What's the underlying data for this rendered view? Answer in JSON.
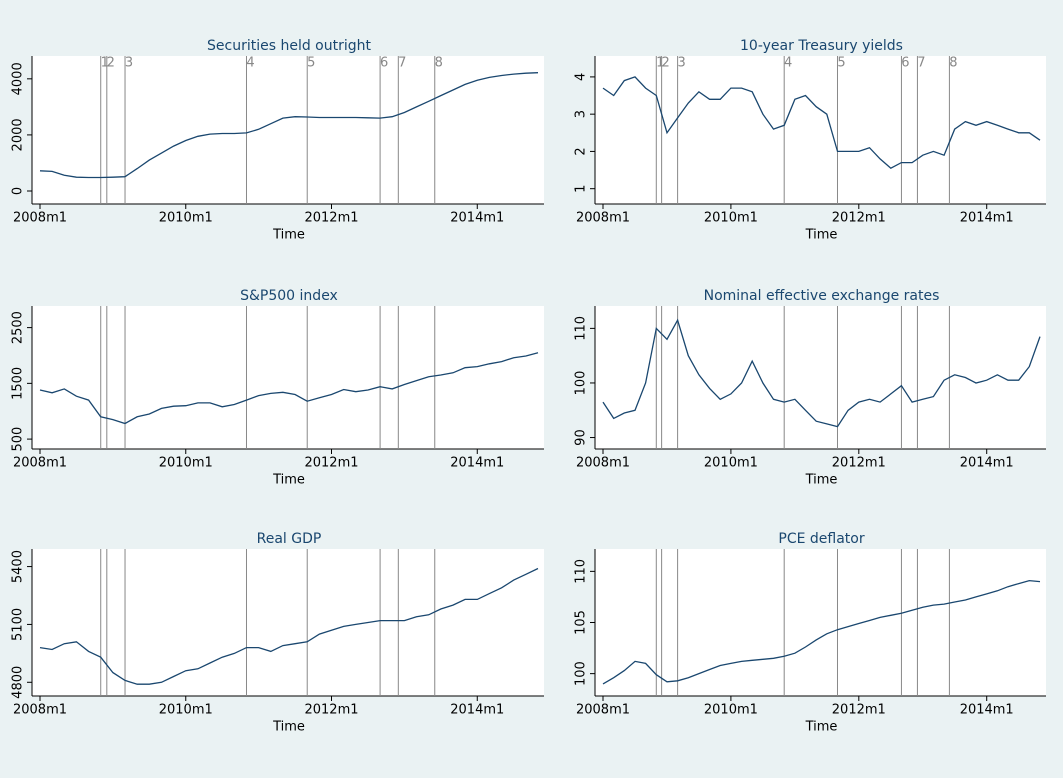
{
  "chart_data": [
    {
      "type": "line",
      "title": "Securities held outright",
      "xlabel": "Time",
      "color": "#1a476f",
      "x": [
        "2008m1",
        "2008m3",
        "2008m5",
        "2008m7",
        "2008m9",
        "2008m11",
        "2009m1",
        "2009m3",
        "2009m5",
        "2009m7",
        "2009m9",
        "2009m11",
        "2010m1",
        "2010m3",
        "2010m5",
        "2010m7",
        "2010m9",
        "2010m11",
        "2011m1",
        "2011m3",
        "2011m5",
        "2011m7",
        "2011m9",
        "2011m11",
        "2012m1",
        "2012m3",
        "2012m5",
        "2012m7",
        "2012m9",
        "2012m11",
        "2013m1",
        "2013m3",
        "2013m5",
        "2013m7",
        "2013m9",
        "2013m11",
        "2014m1",
        "2014m3",
        "2014m5",
        "2014m7",
        "2014m9",
        "2014m11"
      ],
      "values": [
        720,
        700,
        560,
        490,
        480,
        480,
        490,
        510,
        800,
        1100,
        1350,
        1600,
        1800,
        1950,
        2030,
        2050,
        2050,
        2070,
        2200,
        2400,
        2600,
        2650,
        2640,
        2620,
        2620,
        2620,
        2620,
        2610,
        2600,
        2650,
        2800,
        3000,
        3200,
        3400,
        3600,
        3800,
        3950,
        4050,
        4120,
        4170,
        4200,
        4220
      ],
      "ylim": [
        -250,
        4600
      ],
      "yticks": [
        0,
        2000,
        4000
      ],
      "xticks": [
        "2008m1",
        "2010m1",
        "2012m1",
        "2014m1"
      ],
      "events": [
        "2008m11",
        "2008m12",
        "2009m3",
        "2010m11",
        "2011m9",
        "2012m9",
        "2012m12",
        "2013m6"
      ],
      "event_labels": [
        "1",
        "2",
        "3",
        "4",
        "5",
        "6",
        "7",
        "8"
      ]
    },
    {
      "type": "line",
      "title": "10-year Treasury yields",
      "xlabel": "Time",
      "color": "#1a476f",
      "x": [
        "2008m1",
        "2008m3",
        "2008m5",
        "2008m7",
        "2008m9",
        "2008m11",
        "2009m1",
        "2009m3",
        "2009m5",
        "2009m7",
        "2009m9",
        "2009m11",
        "2010m1",
        "2010m3",
        "2010m5",
        "2010m7",
        "2010m9",
        "2010m11",
        "2011m1",
        "2011m3",
        "2011m5",
        "2011m7",
        "2011m9",
        "2011m11",
        "2012m1",
        "2012m3",
        "2012m5",
        "2012m7",
        "2012m9",
        "2012m11",
        "2013m1",
        "2013m3",
        "2013m5",
        "2013m7",
        "2013m9",
        "2013m11",
        "2014m1",
        "2014m3",
        "2014m5",
        "2014m7",
        "2014m9",
        "2014m11"
      ],
      "values": [
        3.7,
        3.5,
        3.9,
        4.0,
        3.7,
        3.5,
        2.5,
        2.9,
        3.3,
        3.6,
        3.4,
        3.4,
        3.7,
        3.7,
        3.6,
        3.0,
        2.6,
        2.7,
        3.4,
        3.5,
        3.2,
        3.0,
        2.0,
        2.0,
        2.0,
        2.1,
        1.8,
        1.55,
        1.7,
        1.7,
        1.9,
        2.0,
        1.9,
        2.6,
        2.8,
        2.7,
        2.8,
        2.7,
        2.6,
        2.5,
        2.5,
        2.3
      ],
      "ylim": [
        0.75,
        4.4
      ],
      "yticks": [
        1,
        2,
        3,
        4
      ],
      "xticks": [
        "2008m1",
        "2010m1",
        "2012m1",
        "2014m1"
      ],
      "events": [
        "2008m11",
        "2008m12",
        "2009m3",
        "2010m11",
        "2011m9",
        "2012m9",
        "2012m12",
        "2013m6"
      ],
      "event_labels": [
        "1",
        "2",
        "3",
        "4",
        "5",
        "6",
        "7",
        "8"
      ]
    },
    {
      "type": "line",
      "title": "S&P500 index",
      "xlabel": "Time",
      "color": "#1a476f",
      "x": [
        "2008m1",
        "2008m3",
        "2008m5",
        "2008m7",
        "2008m9",
        "2008m11",
        "2009m1",
        "2009m3",
        "2009m5",
        "2009m7",
        "2009m9",
        "2009m11",
        "2010m1",
        "2010m3",
        "2010m5",
        "2010m7",
        "2010m9",
        "2010m11",
        "2011m1",
        "2011m3",
        "2011m5",
        "2011m7",
        "2011m9",
        "2011m11",
        "2012m1",
        "2012m3",
        "2012m5",
        "2012m7",
        "2012m9",
        "2012m11",
        "2013m1",
        "2013m3",
        "2013m5",
        "2013m7",
        "2013m9",
        "2013m11",
        "2014m1",
        "2014m3",
        "2014m5",
        "2014m7",
        "2014m9",
        "2014m11"
      ],
      "values": [
        1380,
        1330,
        1400,
        1270,
        1200,
        900,
        850,
        780,
        900,
        950,
        1050,
        1090,
        1100,
        1150,
        1150,
        1080,
        1120,
        1200,
        1280,
        1320,
        1340,
        1300,
        1180,
        1240,
        1300,
        1390,
        1350,
        1380,
        1440,
        1400,
        1480,
        1550,
        1620,
        1650,
        1690,
        1780,
        1800,
        1850,
        1890,
        1960,
        1990,
        2050
      ],
      "ylim": [
        430,
        2780
      ],
      "yticks": [
        500,
        1500,
        2500
      ],
      "xticks": [
        "2008m1",
        "2010m1",
        "2012m1",
        "2014m1"
      ],
      "events": [
        "2008m11",
        "2008m12",
        "2009m3",
        "2010m11",
        "2011m9",
        "2012m9",
        "2012m12",
        "2013m6"
      ]
    },
    {
      "type": "line",
      "title": "Nominal effective exchange rates",
      "xlabel": "Time",
      "color": "#1a476f",
      "x": [
        "2008m1",
        "2008m3",
        "2008m5",
        "2008m7",
        "2008m9",
        "2008m11",
        "2009m1",
        "2009m3",
        "2009m5",
        "2009m7",
        "2009m9",
        "2009m11",
        "2010m1",
        "2010m3",
        "2010m5",
        "2010m7",
        "2010m9",
        "2010m11",
        "2011m1",
        "2011m3",
        "2011m5",
        "2011m7",
        "2011m9",
        "2011m11",
        "2012m1",
        "2012m3",
        "2012m5",
        "2012m7",
        "2012m9",
        "2012m11",
        "2013m1",
        "2013m3",
        "2013m5",
        "2013m7",
        "2013m9",
        "2013m11",
        "2014m1",
        "2014m3",
        "2014m5",
        "2014m7",
        "2014m9",
        "2014m11"
      ],
      "values": [
        96.5,
        93.5,
        94.5,
        95,
        100,
        110,
        108,
        111.5,
        105,
        101.5,
        99,
        97,
        98,
        100,
        104,
        100,
        97,
        96.5,
        97,
        95,
        93,
        92.5,
        92,
        95,
        96.5,
        97,
        96.5,
        98,
        99.5,
        96.5,
        97,
        97.5,
        100.5,
        101.5,
        101,
        100,
        100.5,
        101.5,
        100.5,
        100.5,
        103,
        108.5
      ],
      "ylim": [
        89,
        113
      ],
      "yticks": [
        90,
        100,
        110
      ],
      "xticks": [
        "2008m1",
        "2010m1",
        "2012m1",
        "2014m1"
      ],
      "events": [
        "2008m11",
        "2008m12",
        "2009m3",
        "2010m11",
        "2011m9",
        "2012m9",
        "2012m12",
        "2013m6"
      ]
    },
    {
      "type": "line",
      "title": "Real GDP",
      "xlabel": "Time",
      "color": "#1a476f",
      "x": [
        "2008m1",
        "2008m3",
        "2008m5",
        "2008m7",
        "2008m9",
        "2008m11",
        "2009m1",
        "2009m3",
        "2009m5",
        "2009m7",
        "2009m9",
        "2009m11",
        "2010m1",
        "2010m3",
        "2010m5",
        "2010m7",
        "2010m9",
        "2010m11",
        "2011m1",
        "2011m3",
        "2011m5",
        "2011m7",
        "2011m9",
        "2011m11",
        "2012m1",
        "2012m3",
        "2012m5",
        "2012m7",
        "2012m9",
        "2012m11",
        "2013m1",
        "2013m3",
        "2013m5",
        "2013m7",
        "2013m9",
        "2013m11",
        "2014m1",
        "2014m3",
        "2014m5",
        "2014m7",
        "2014m9",
        "2014m11"
      ],
      "values": [
        4980,
        4970,
        5000,
        5010,
        4960,
        4930,
        4850,
        4810,
        4790,
        4790,
        4800,
        4830,
        4860,
        4870,
        4900,
        4930,
        4950,
        4980,
        4980,
        4960,
        4990,
        5000,
        5010,
        5050,
        5070,
        5090,
        5100,
        5110,
        5120,
        5120,
        5120,
        5140,
        5150,
        5180,
        5200,
        5230,
        5230,
        5260,
        5290,
        5330,
        5360,
        5390
      ],
      "ylim": [
        4760,
        5460
      ],
      "yticks": [
        4800,
        5100,
        5400
      ],
      "xticks": [
        "2008m1",
        "2010m1",
        "2012m1",
        "2014m1"
      ],
      "events": [
        "2008m11",
        "2008m12",
        "2009m3",
        "2010m11",
        "2011m9",
        "2012m9",
        "2012m12",
        "2013m6"
      ]
    },
    {
      "type": "line",
      "title": "PCE deflator",
      "xlabel": "Time",
      "color": "#1a476f",
      "x": [
        "2008m1",
        "2008m3",
        "2008m5",
        "2008m7",
        "2008m9",
        "2008m11",
        "2009m1",
        "2009m3",
        "2009m5",
        "2009m7",
        "2009m9",
        "2009m11",
        "2010m1",
        "2010m3",
        "2010m5",
        "2010m7",
        "2010m9",
        "2010m11",
        "2011m1",
        "2011m3",
        "2011m5",
        "2011m7",
        "2011m9",
        "2011m11",
        "2012m1",
        "2012m3",
        "2012m5",
        "2012m7",
        "2012m9",
        "2012m11",
        "2013m1",
        "2013m3",
        "2013m5",
        "2013m7",
        "2013m9",
        "2013m11",
        "2014m1",
        "2014m3",
        "2014m5",
        "2014m7",
        "2014m9",
        "2014m11"
      ],
      "values": [
        99.0,
        99.6,
        100.3,
        101.2,
        101.0,
        99.9,
        99.2,
        99.3,
        99.6,
        100.0,
        100.4,
        100.8,
        101.0,
        101.2,
        101.3,
        101.4,
        101.5,
        101.7,
        102.0,
        102.6,
        103.3,
        103.9,
        104.3,
        104.6,
        104.9,
        105.2,
        105.5,
        105.7,
        105.9,
        106.2,
        106.5,
        106.7,
        106.8,
        107.0,
        107.2,
        107.5,
        107.8,
        108.1,
        108.5,
        108.8,
        109.1,
        109.0
      ],
      "ylim": [
        98.4,
        111.6
      ],
      "yticks": [
        100,
        105,
        110
      ],
      "xticks": [
        "2008m1",
        "2010m1",
        "2012m1",
        "2014m1"
      ],
      "events": [
        "2008m11",
        "2008m12",
        "2009m3",
        "2010m11",
        "2011m9",
        "2012m9",
        "2012m12",
        "2013m6"
      ]
    }
  ]
}
